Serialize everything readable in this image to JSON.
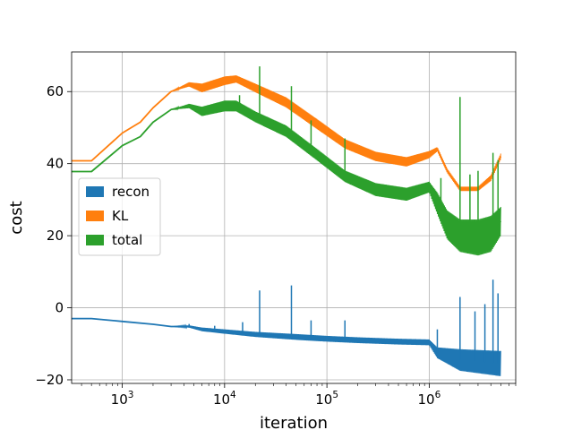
{
  "chart_data": {
    "type": "line",
    "xscale": "log",
    "xlabel": "iteration",
    "ylabel": "cost",
    "xlim": [
      320,
      7000000
    ],
    "ylim": [
      -21,
      71
    ],
    "grid": true,
    "legend_position": "center-left",
    "x_ticks": [
      {
        "value": 1000,
        "base": "10",
        "exp": "3"
      },
      {
        "value": 10000,
        "base": "10",
        "exp": "4"
      },
      {
        "value": 100000,
        "base": "10",
        "exp": "5"
      },
      {
        "value": 1000000,
        "base": "10",
        "exp": "6"
      }
    ],
    "y_ticks": [
      {
        "value": 60,
        "label": "60"
      },
      {
        "value": 40,
        "label": "40"
      },
      {
        "value": 20,
        "label": "20"
      },
      {
        "value": 0,
        "label": "0"
      },
      {
        "value": -20,
        "label": "−20"
      }
    ],
    "series": [
      {
        "name": "recon",
        "color": "#1f77b4",
        "x": [
          320,
          500,
          1000,
          2000,
          3000,
          4500,
          6000,
          10000,
          20000,
          50000,
          100000,
          200000,
          500000,
          1000000,
          1200000,
          2000000,
          5000000
        ],
        "y": [
          -3,
          -3,
          -3.8,
          -4.6,
          -5.2,
          -5.2,
          -6.0,
          -6.6,
          -7.4,
          -8.1,
          -8.6,
          -9.0,
          -9.4,
          -9.6,
          -12.5,
          -14.5,
          -15.5
        ],
        "band_half_width": [
          0,
          0,
          0,
          0,
          0,
          0.3,
          0.5,
          0.6,
          0.7,
          0.8,
          0.8,
          0.8,
          0.8,
          0.8,
          1.5,
          3.0,
          3.5
        ],
        "spikes": [
          {
            "x": 4500,
            "y": -4.5
          },
          {
            "x": 8000,
            "y": -5.0
          },
          {
            "x": 15000,
            "y": -4.0
          },
          {
            "x": 22000,
            "y": 4.8
          },
          {
            "x": 45000,
            "y": 6.2
          },
          {
            "x": 70000,
            "y": -3.5
          },
          {
            "x": 150000,
            "y": -3.5
          },
          {
            "x": 1200000,
            "y": -6.0
          },
          {
            "x": 2000000,
            "y": 3.0
          },
          {
            "x": 2800000,
            "y": -1.0
          },
          {
            "x": 3500000,
            "y": 1.0
          },
          {
            "x": 4200000,
            "y": 7.8
          },
          {
            "x": 4700000,
            "y": 4.0
          }
        ]
      },
      {
        "name": "KL",
        "color": "#ff7f0e",
        "x": [
          320,
          500,
          1000,
          1500,
          2000,
          3000,
          4500,
          6000,
          10000,
          13000,
          20000,
          40000,
          80000,
          150000,
          300000,
          600000,
          1000000,
          1200000,
          1500000,
          2000000,
          3000000,
          4000000,
          5000000
        ],
        "y": [
          40.8,
          40.8,
          48.5,
          51.5,
          55.5,
          60,
          62,
          61,
          63,
          63.5,
          61,
          57,
          51,
          45.5,
          42,
          40.5,
          42.5,
          44,
          38,
          33,
          33,
          36,
          42
        ],
        "band_half_width": [
          0,
          0,
          0,
          0,
          0,
          0,
          0.6,
          1.2,
          1.2,
          1.0,
          1.2,
          1.4,
          1.4,
          1.3,
          1.3,
          1.3,
          1.0,
          0.6,
          0.6,
          0.6,
          0.6,
          0.8,
          0.8
        ],
        "spikes": []
      },
      {
        "name": "total",
        "color": "#2ca02c",
        "x": [
          320,
          500,
          1000,
          1500,
          2000,
          3000,
          4500,
          6000,
          10000,
          13000,
          20000,
          40000,
          80000,
          150000,
          300000,
          600000,
          1000000,
          1200000,
          1500000,
          2000000,
          3000000,
          4000000,
          5000000
        ],
        "y": [
          37.8,
          37.8,
          45,
          47.5,
          51.5,
          55,
          56,
          54.5,
          56,
          56,
          53,
          49,
          42.5,
          36.5,
          32.8,
          31.5,
          33.5,
          29,
          23,
          20,
          19.5,
          20.5,
          24
        ],
        "band_half_width": [
          0,
          0,
          0,
          0,
          0,
          0,
          0.6,
          1.3,
          1.5,
          1.5,
          1.5,
          1.6,
          1.6,
          1.6,
          1.8,
          1.8,
          1.5,
          3.0,
          4.0,
          4.5,
          5.0,
          5.0,
          4.0
        ],
        "spikes": [
          {
            "x": 22000,
            "y": 67
          },
          {
            "x": 45000,
            "y": 61.5
          },
          {
            "x": 14000,
            "y": 59
          },
          {
            "x": 70000,
            "y": 52
          },
          {
            "x": 150000,
            "y": 47
          },
          {
            "x": 2000000,
            "y": 58.5
          },
          {
            "x": 1300000,
            "y": 36
          },
          {
            "x": 2500000,
            "y": 37
          },
          {
            "x": 3000000,
            "y": 38
          },
          {
            "x": 4200000,
            "y": 43
          },
          {
            "x": 4700000,
            "y": 41
          }
        ]
      }
    ]
  }
}
